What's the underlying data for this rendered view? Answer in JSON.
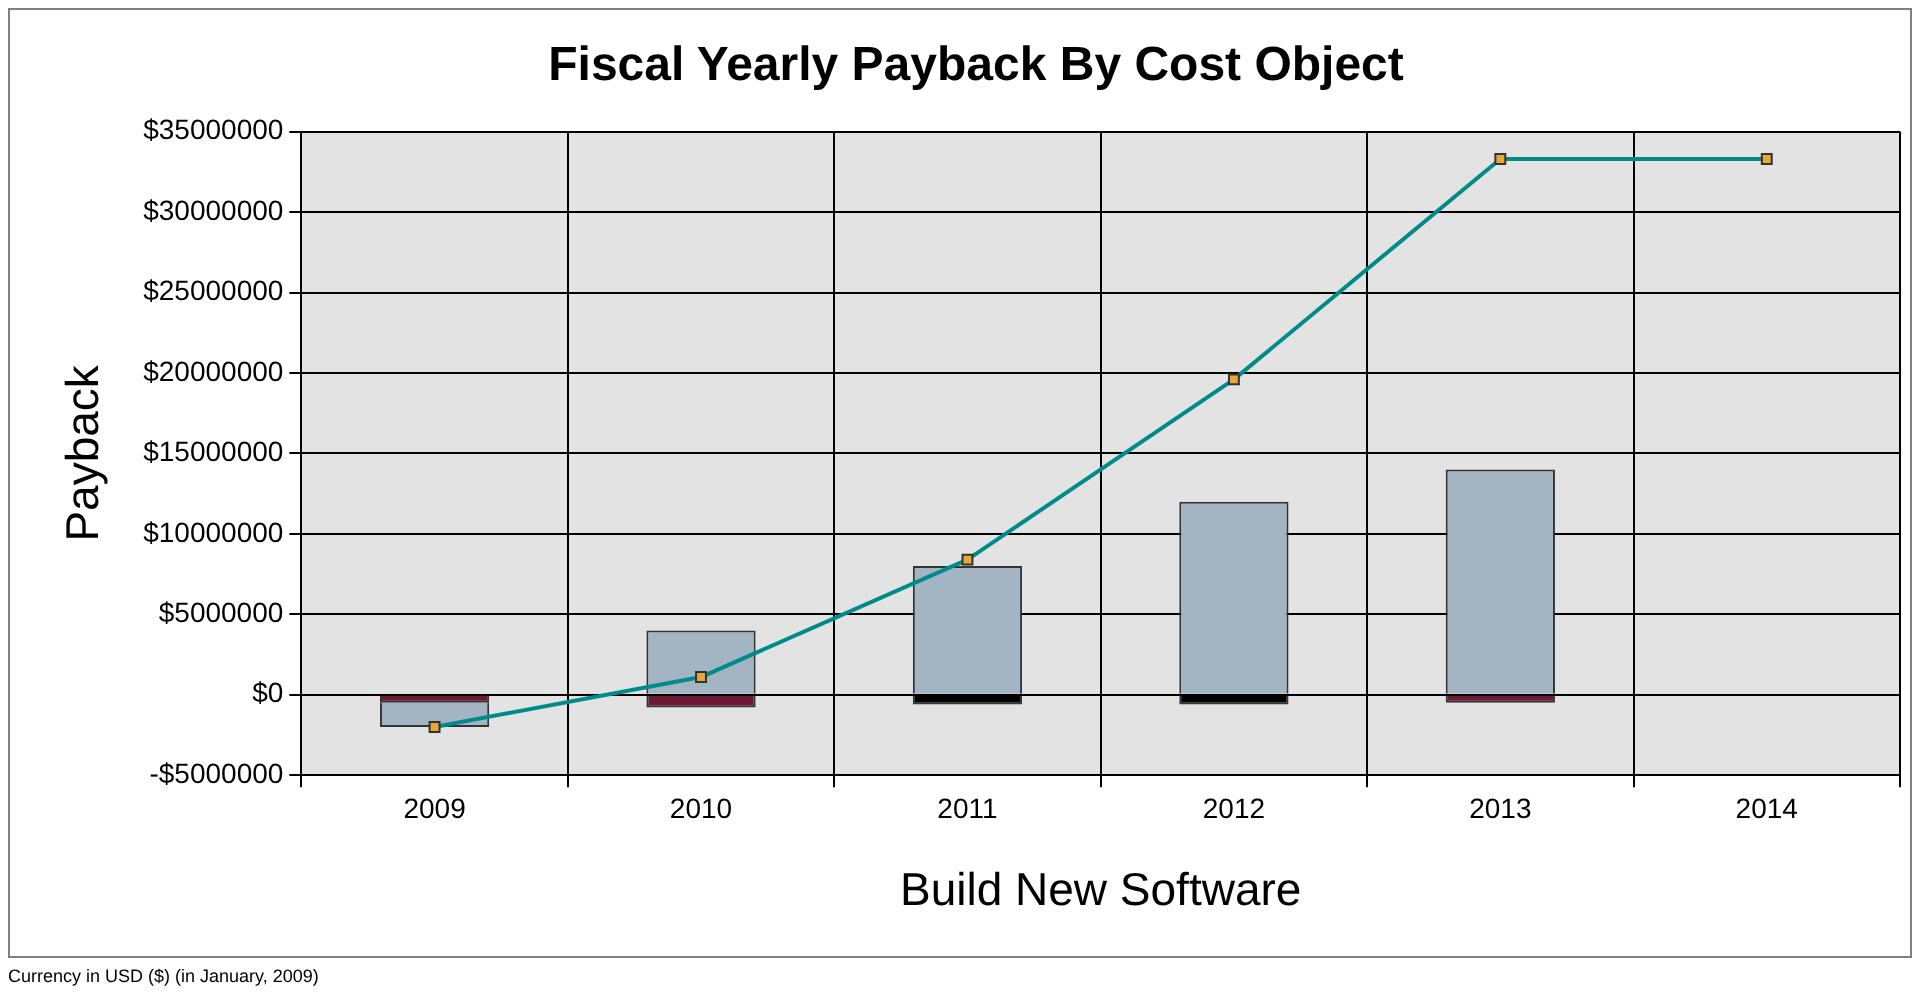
{
  "chart_data": {
    "type": "bar",
    "title": "Fiscal Yearly Payback By Cost Object",
    "xlabel": "Build New Software",
    "ylabel": "Payback",
    "categories": [
      "2009",
      "2010",
      "2011",
      "2012",
      "2013",
      "2014"
    ],
    "stacked": true,
    "series": [
      {
        "colors": [
          "#6b1a34",
          "#6b1a34",
          "#000000",
          "#000000",
          "#6b1a34",
          "#6b1a34"
        ],
        "values": [
          -500000,
          -800000,
          -600000,
          -600000,
          -500000,
          null
        ]
      },
      {
        "color": "#a3b4c2",
        "values": [
          -1500000,
          4000000,
          8000000,
          12000000,
          14000000,
          null
        ]
      },
      {
        "type": "line",
        "color": "#008b8b",
        "marker": "square",
        "values": [
          -2000000,
          1100000,
          8400000,
          19600000,
          33300000,
          33300000
        ]
      }
    ],
    "ylim": [
      -5000000,
      35000000
    ],
    "yticks": [
      {
        "value": -5000000,
        "label": "-$5000000"
      },
      {
        "value": 0,
        "label": "$0"
      },
      {
        "value": 5000000,
        "label": "$5000000"
      },
      {
        "value": 10000000,
        "label": "$10000000"
      },
      {
        "value": 15000000,
        "label": "$15000000"
      },
      {
        "value": 20000000,
        "label": "$20000000"
      },
      {
        "value": 25000000,
        "label": "$25000000"
      },
      {
        "value": 30000000,
        "label": "$30000000"
      },
      {
        "value": 35000000,
        "label": "$35000000"
      }
    ],
    "grid": true,
    "legend": false,
    "annotations": [
      "Currency in USD ($) (in January, 2009)"
    ]
  }
}
